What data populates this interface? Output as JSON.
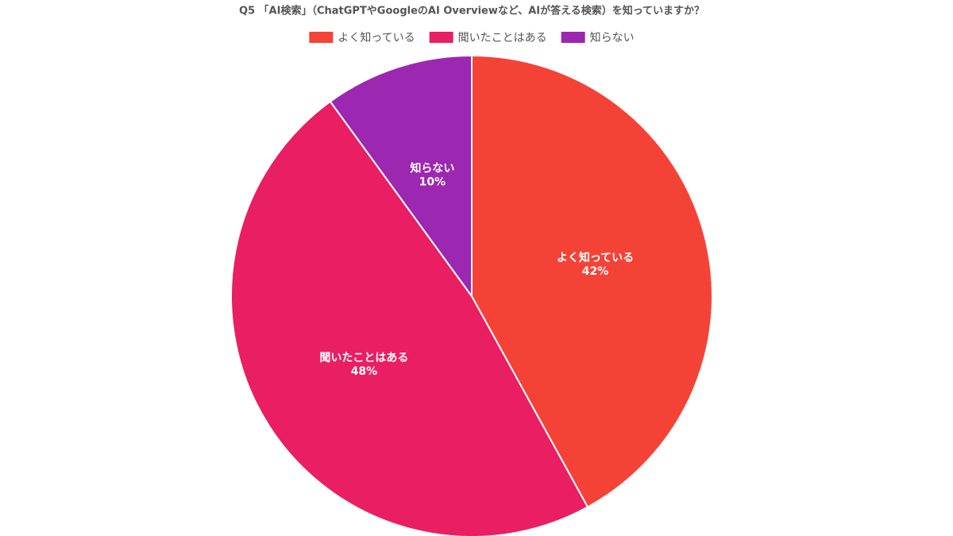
{
  "chart_data": {
    "type": "pie",
    "title": "Q5 「AI検索」（ChatGPTやGoogleのAI Overviewなど、AIが答える検索）を知っていますか？",
    "categories": [
      "よく知っている",
      "聞いたことはある",
      "知らない"
    ],
    "values": [
      42,
      48,
      10
    ],
    "value_labels": [
      "42%",
      "48%",
      "10%"
    ],
    "colors": [
      "#f44336",
      "#e91e63",
      "#9c27b0"
    ],
    "legend": "top"
  }
}
